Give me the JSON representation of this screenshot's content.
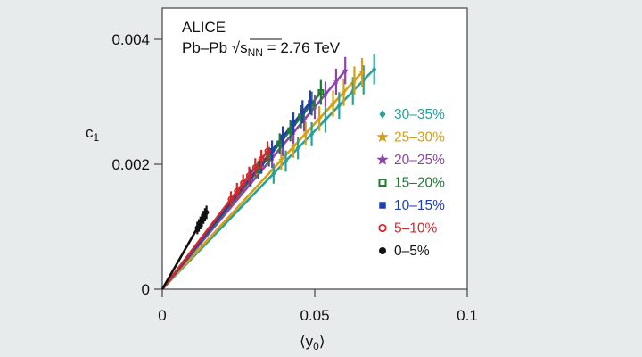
{
  "chart_data": {
    "type": "scatter",
    "annotation": {
      "line1": "ALICE",
      "line2_prefix": "Pb–Pb ",
      "sqrt": "√",
      "s": "s",
      "sub": "NN",
      "line2_suffix": " = 2.76 TeV"
    },
    "ylabel": {
      "main": "c",
      "sub": "1"
    },
    "xlabel": {
      "left": "⟨y",
      "sub": "0",
      "right": "⟩"
    },
    "xlim": [
      0,
      0.1
    ],
    "ylim": [
      0,
      0.0045
    ],
    "x_ticks": [
      {
        "value": 0,
        "label": "0"
      },
      {
        "value": 0.05,
        "label": "0.05"
      },
      {
        "value": 0.1,
        "label": "0.1"
      }
    ],
    "y_ticks": [
      {
        "value": 0,
        "label": "0"
      },
      {
        "value": 0.002,
        "label": "0.002"
      },
      {
        "value": 0.004,
        "label": "0.004"
      }
    ],
    "legend_position": "right",
    "series": [
      {
        "name": "30–35%",
        "color": "#2aa198",
        "marker": "diamond",
        "slope": 0.0507,
        "points": [
          [
            0.0365,
            0.00185
          ],
          [
            0.0405,
            0.00205
          ],
          [
            0.0445,
            0.00226
          ],
          [
            0.049,
            0.00248
          ],
          [
            0.0535,
            0.00271
          ],
          [
            0.058,
            0.00294
          ],
          [
            0.0625,
            0.00317
          ],
          [
            0.066,
            0.00335
          ],
          [
            0.0695,
            0.00352
          ]
        ]
      },
      {
        "name": "25–30%",
        "color": "#d4a017",
        "marker": "star",
        "slope": 0.053,
        "points": [
          [
            0.039,
            0.00207
          ],
          [
            0.043,
            0.00228
          ],
          [
            0.047,
            0.00249
          ],
          [
            0.0515,
            0.00273
          ],
          [
            0.056,
            0.00297
          ],
          [
            0.0595,
            0.00315
          ],
          [
            0.063,
            0.00334
          ],
          [
            0.0655,
            0.00347
          ]
        ]
      },
      {
        "name": "20–25%",
        "color": "#8e44ad",
        "marker": "star",
        "slope": 0.0583,
        "points": [
          [
            0.036,
            0.0021
          ],
          [
            0.0395,
            0.0023
          ],
          [
            0.043,
            0.00251
          ],
          [
            0.0465,
            0.00271
          ],
          [
            0.05,
            0.00292
          ],
          [
            0.0535,
            0.00312
          ],
          [
            0.057,
            0.00332
          ],
          [
            0.06,
            0.0035
          ]
        ]
      },
      {
        "name": "15–20%",
        "color": "#1e7b34",
        "marker": "square-open",
        "slope": 0.0606,
        "points": [
          [
            0.0315,
            0.00191
          ],
          [
            0.035,
            0.00212
          ],
          [
            0.0385,
            0.00233
          ],
          [
            0.042,
            0.00254
          ],
          [
            0.0455,
            0.00276
          ],
          [
            0.049,
            0.00297
          ],
          [
            0.052,
            0.00315
          ]
        ]
      },
      {
        "name": "10–15%",
        "color": "#1f3fb0",
        "marker": "square",
        "slope": 0.0617,
        "points": [
          [
            0.029,
            0.00179
          ],
          [
            0.0325,
            0.002
          ],
          [
            0.036,
            0.00222
          ],
          [
            0.0395,
            0.00244
          ],
          [
            0.043,
            0.00265
          ],
          [
            0.046,
            0.00284
          ],
          [
            0.0485,
            0.00299
          ]
        ]
      },
      {
        "name": "5–10%",
        "color": "#d62728",
        "marker": "circle-open",
        "slope": 0.064,
        "points": [
          [
            0.0225,
            0.00144
          ],
          [
            0.0245,
            0.00157
          ],
          [
            0.0265,
            0.0017
          ],
          [
            0.0285,
            0.00182
          ],
          [
            0.0305,
            0.00195
          ],
          [
            0.0325,
            0.00208
          ],
          [
            0.0345,
            0.00221
          ]
        ]
      },
      {
        "name": "0–5%",
        "color": "#111111",
        "marker": "circle",
        "slope": 0.085,
        "points": [
          [
            0.0115,
            0.00098
          ],
          [
            0.012,
            0.00102
          ],
          [
            0.0125,
            0.00106
          ],
          [
            0.013,
            0.0011
          ],
          [
            0.0135,
            0.00115
          ],
          [
            0.014,
            0.00119
          ],
          [
            0.0145,
            0.00123
          ]
        ]
      }
    ]
  }
}
